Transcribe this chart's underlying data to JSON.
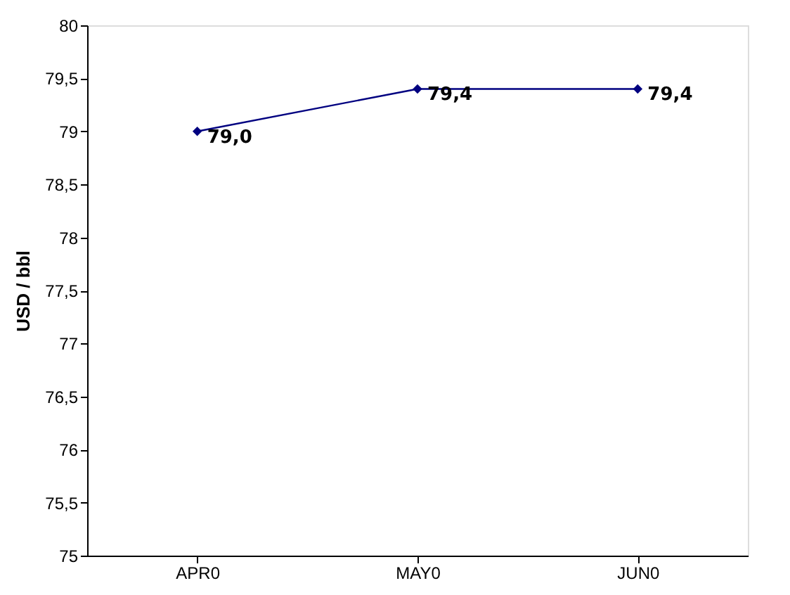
{
  "chart_data": {
    "type": "line",
    "ylabel": "USD / bbl",
    "categories": [
      "APR0",
      "MAY0",
      "JUN0"
    ],
    "values": [
      79.0,
      79.4,
      79.4
    ],
    "color": "#000080",
    "marker": "diamond",
    "line_style": "solid",
    "value_labels": [
      "79,0",
      "79,4",
      "79,4"
    ],
    "ylim": [
      75,
      80
    ],
    "yticks": [
      75,
      {
        "value": 75.5,
        "label": "75,5"
      },
      76,
      {
        "value": 76.5,
        "label": "76,5"
      },
      77,
      {
        "value": 77.5,
        "label": "77,5"
      },
      78,
      {
        "value": 78.5,
        "label": "78,5"
      },
      79,
      {
        "value": 79.5,
        "label": "79,5"
      },
      80
    ],
    "grid": false
  }
}
